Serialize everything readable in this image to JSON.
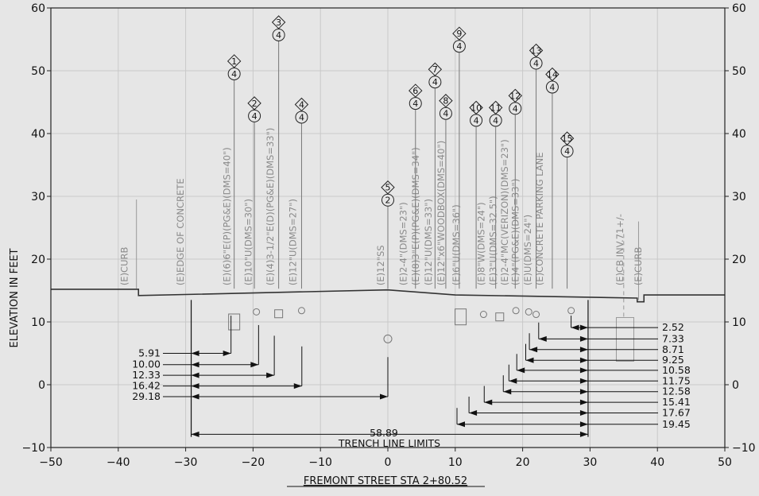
{
  "chart_data": {
    "type": "diagram",
    "xlabel": "FREMONT STREET STA 2+80.52",
    "ylabel": "ELEVATION IN FEET",
    "xlim": [
      -50,
      50
    ],
    "ylim": [
      -10,
      60
    ],
    "x_ticks": [
      "−50",
      "−40",
      "−30",
      "−20",
      "−10",
      "0",
      "10",
      "20",
      "30",
      "40",
      "50"
    ],
    "y_ticks_left": [
      "60",
      "50",
      "40",
      "30",
      "20",
      "10",
      "0",
      "−10"
    ],
    "y_ticks_right": [
      "60",
      "50",
      "40",
      "30",
      "20",
      "10",
      "0",
      "−10"
    ],
    "utility_labels": [
      {
        "text": "(E)CURB",
        "x": -38.6
      },
      {
        "text": "(E)EDGE OF CONCRETE",
        "x": -30.3
      },
      {
        "text": "(E)(6)6\"E(P)(PG&E)(DMS=40\")",
        "x": -23.4
      },
      {
        "text": "(E)10\"U(DMS=30\")",
        "x": -20.2
      },
      {
        "text": "(E)(4)3-1/2\"E(D)(PG&E)(DMS=33\")",
        "x": -17.0
      },
      {
        "text": "(E)12\"U(DMS=27\")",
        "x": -13.6
      },
      {
        "text": "(E)12\"SS",
        "x": -0.6
      },
      {
        "text": "(E)2-4\"(DMS=23\")",
        "x": 2.8
      },
      {
        "text": "(E)(8)3\"E(P)(PG&E)(DMS=34\")",
        "x": 4.6
      },
      {
        "text": "(E)12\"U(DMS=33\")",
        "x": 6.5
      },
      {
        "text": "(E)12\"x6\"WOODBOX(DMS=40\")",
        "x": 8.4
      },
      {
        "text": "(E)6\"U(DMS=36\")",
        "x": 10.6
      },
      {
        "text": "(E)8\"W(DMS=24\")",
        "x": 14.3
      },
      {
        "text": "(E)3\"U(DMS=32.5\")",
        "x": 16.1
      },
      {
        "text": "(E)2-4\"MC(VERIZON)(DMS=23\")",
        "x": 17.8
      },
      {
        "text": "(E)4\"(PG&E)(DMS=33\")",
        "x": 19.4
      },
      {
        "text": "(E)U(DMS=24\")",
        "x": 21.2
      },
      {
        "text": "(E)CONCRETE PARKING LANE",
        "x": 23.0
      },
      {
        "text": "(E)CB INV.71+/-",
        "x": 34.9
      },
      {
        "text": "(E)CURB",
        "x": 37.6
      }
    ],
    "markers": [
      {
        "id": "1",
        "count": "4",
        "x": -22.8,
        "y": 49.5
      },
      {
        "id": "2",
        "count": "4",
        "x": -19.8,
        "y": 42.8
      },
      {
        "id": "3",
        "count": "4",
        "x": -16.2,
        "y": 55.7
      },
      {
        "id": "4",
        "count": "4",
        "x": -12.8,
        "y": 42.6
      },
      {
        "id": "5",
        "count": "2",
        "x": 0.0,
        "y": 29.4
      },
      {
        "id": "6",
        "count": "4",
        "x": 4.1,
        "y": 44.8
      },
      {
        "id": "7",
        "count": "4",
        "x": 7.0,
        "y": 48.2
      },
      {
        "id": "8",
        "count": "4",
        "x": 8.6,
        "y": 43.2
      },
      {
        "id": "9",
        "count": "4",
        "x": 10.6,
        "y": 53.9
      },
      {
        "id": "10",
        "count": "4",
        "x": 13.1,
        "y": 42.1
      },
      {
        "id": "11",
        "count": "4",
        "x": 16.0,
        "y": 42.1
      },
      {
        "id": "12",
        "count": "4",
        "x": 18.9,
        "y": 44.0
      },
      {
        "id": "13",
        "count": "4",
        "x": 22.0,
        "y": 51.2
      },
      {
        "id": "14",
        "count": "4",
        "x": 24.4,
        "y": 47.4
      },
      {
        "id": "15",
        "count": "4",
        "x": 26.6,
        "y": 37.2
      }
    ],
    "left_dimensions": [
      "5.91",
      "10.00",
      "12.33",
      "16.42",
      "29.18"
    ],
    "left_dimension_values": [
      5.91,
      10.0,
      12.33,
      16.42,
      29.18
    ],
    "right_dimensions": [
      "2.52",
      "7.33",
      "8.71",
      "9.25",
      "10.58",
      "11.75",
      "12.58",
      "15.41",
      "17.67",
      "19.45"
    ],
    "right_dimension_values": [
      2.52,
      7.33,
      8.71,
      9.25,
      10.58,
      11.75,
      12.58,
      15.41,
      17.67,
      19.45
    ],
    "trench_width": "58.89",
    "trench_width_value": 58.89,
    "trench_label": "TRENCH LINE LIMITS",
    "trench_limits": [
      -29.18,
      29.71
    ]
  }
}
